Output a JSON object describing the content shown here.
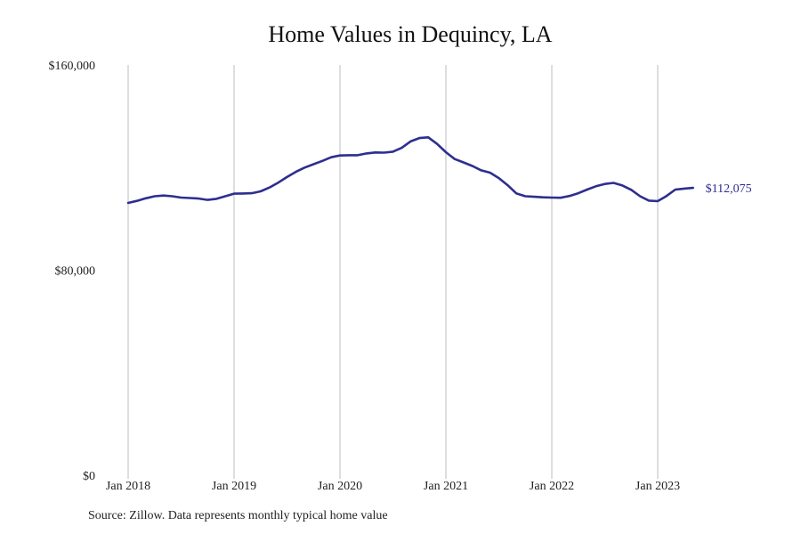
{
  "chart_data": {
    "type": "line",
    "title": "Home Values in Dequincy, LA",
    "xlabel": "",
    "ylabel": "",
    "x_tick_labels": [
      "Jan 2018",
      "Jan 2019",
      "Jan 2020",
      "Jan 2021",
      "Jan 2022",
      "Jan 2023"
    ],
    "y_tick_labels": [
      "$160,000",
      "$80,000",
      "$0"
    ],
    "y_ticks": [
      160000,
      80000,
      0
    ],
    "ylim": [
      0,
      160000
    ],
    "xlim": [
      "2018-01",
      "2023-12"
    ],
    "grid": "vertical lines at each January",
    "line_color": "#2e2e8f",
    "series": [
      {
        "x": [
          "2018-01",
          "2018-02",
          "2018-03",
          "2018-04",
          "2018-05",
          "2018-06",
          "2018-07",
          "2018-08",
          "2018-09",
          "2018-10",
          "2018-11",
          "2018-12",
          "2019-01",
          "2019-02",
          "2019-03",
          "2019-04",
          "2019-05",
          "2019-06",
          "2019-07",
          "2019-08",
          "2019-09",
          "2019-10",
          "2019-11",
          "2019-12",
          "2020-01",
          "2020-02",
          "2020-03",
          "2020-04",
          "2020-05",
          "2020-06",
          "2020-07",
          "2020-08",
          "2020-09",
          "2020-10",
          "2020-11",
          "2020-12",
          "2021-01",
          "2021-02",
          "2021-03",
          "2021-04",
          "2021-05",
          "2021-06",
          "2021-07",
          "2021-08",
          "2021-09",
          "2021-10",
          "2021-11",
          "2021-12",
          "2022-01",
          "2022-02",
          "2022-03",
          "2022-04",
          "2022-05",
          "2022-06",
          "2022-07",
          "2022-08",
          "2022-09",
          "2022-10",
          "2022-11",
          "2022-12",
          "2023-01",
          "2023-02",
          "2023-03",
          "2023-04",
          "2023-05"
        ],
        "values": [
          106200,
          107000,
          108000,
          108800,
          109100,
          108800,
          108300,
          108100,
          107900,
          107400,
          107800,
          108800,
          109800,
          109900,
          110000,
          110700,
          112200,
          114100,
          116300,
          118300,
          120000,
          121300,
          122600,
          124000,
          124700,
          124800,
          124800,
          125500,
          125900,
          125800,
          126200,
          127700,
          130200,
          131500,
          131800,
          129200,
          126000,
          123300,
          122000,
          120600,
          118900,
          118000,
          115900,
          113100,
          109900,
          108800,
          108600,
          108400,
          108300,
          108200,
          108900,
          110000,
          111400,
          112700,
          113600,
          114000,
          113000,
          111300,
          108800,
          107100,
          106900,
          108900,
          111400,
          111800,
          112075
        ]
      }
    ],
    "end_label": "$112,075"
  },
  "footer": {
    "source": "Source: Zillow. Data represents monthly typical home value"
  }
}
